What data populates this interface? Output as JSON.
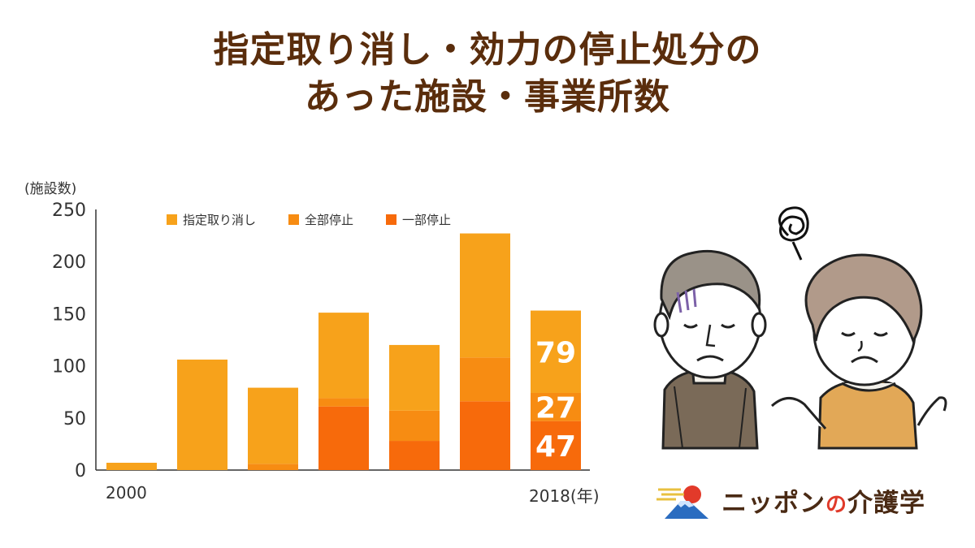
{
  "title": {
    "line1": "指定取り消し・効力の停止処分の",
    "line2": "あった施設・事業所数"
  },
  "axis": {
    "y_unit": "(施設数)",
    "x_start": "2000",
    "x_end": "2018(年)"
  },
  "legend": [
    {
      "label": "指定取り消し",
      "color": "#f7a21b"
    },
    {
      "label": "全部停止",
      "color": "#f78c12"
    },
    {
      "label": "一部停止",
      "color": "#f76a0b"
    }
  ],
  "logo": {
    "text_a": "ニッポン",
    "text_no": "の",
    "text_b": "介護学"
  },
  "chart_data": {
    "type": "bar",
    "stacked": true,
    "categories": [
      "2000",
      "",
      "",
      "",
      "",
      "",
      "2018"
    ],
    "series": [
      {
        "name": "一部停止",
        "color": "#f76a0b",
        "values": [
          0,
          0,
          0,
          61,
          28,
          66,
          47
        ]
      },
      {
        "name": "全部停止",
        "color": "#f78c12",
        "values": [
          0,
          0,
          6,
          8,
          29,
          42,
          27
        ]
      },
      {
        "name": "指定取り消し",
        "color": "#f7a21b",
        "values": [
          7,
          106,
          73,
          82,
          63,
          119,
          79
        ]
      }
    ],
    "data_labels_last_bar": [
      "79",
      "27",
      "47"
    ],
    "yticks": [
      0,
      50,
      100,
      150,
      200,
      250
    ],
    "ylim": [
      0,
      250
    ],
    "grid": false,
    "legend_position": "top"
  }
}
